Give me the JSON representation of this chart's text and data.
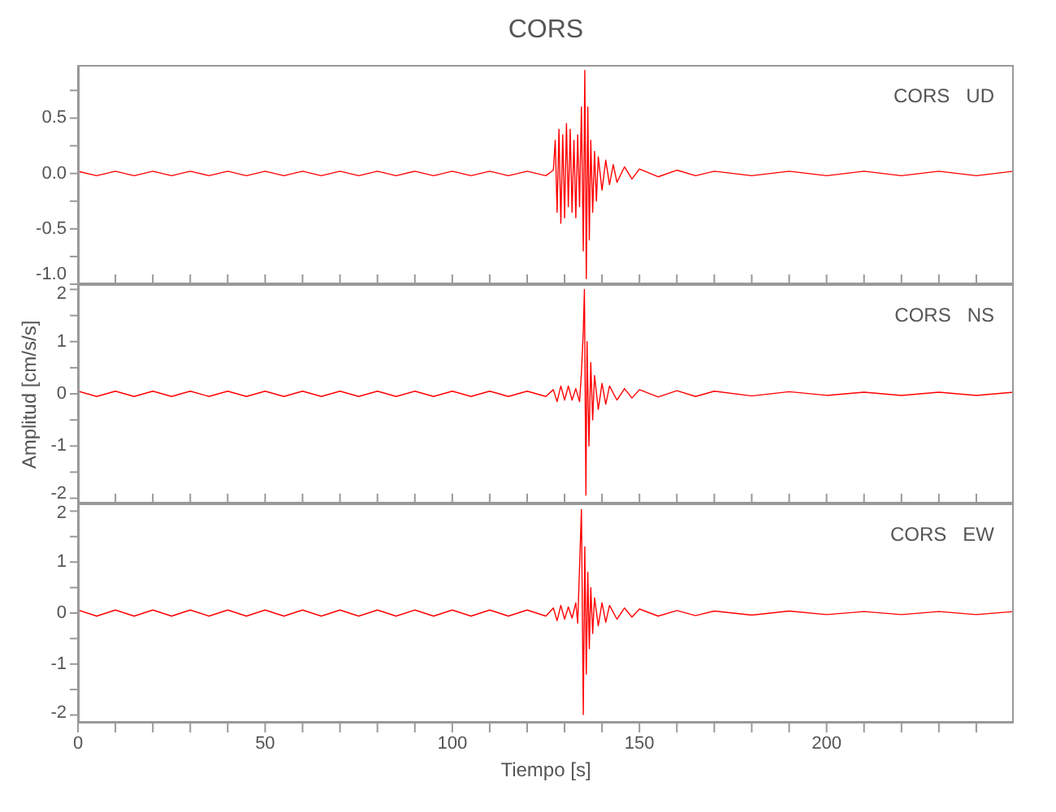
{
  "chart_data": [
    {
      "type": "line",
      "title": "CORS",
      "annotations": [
        "CORS   UD"
      ],
      "color": "#ff0000",
      "tick_labels": "y",
      "grid": false,
      "marker": "none",
      "line_style": "solid",
      "xlim": [
        0,
        250
      ],
      "ylim": [
        -1,
        0.98
      ],
      "xticks": [
        0,
        {
          "value": 10,
          "label": null
        },
        {
          "value": 20,
          "label": null
        },
        {
          "value": 30,
          "label": null
        },
        {
          "value": 40,
          "label": null
        },
        50,
        {
          "value": 60,
          "label": null
        },
        {
          "value": 70,
          "label": null
        },
        {
          "value": 80,
          "label": null
        },
        {
          "value": 90,
          "label": null
        },
        100,
        {
          "value": 110,
          "label": null
        },
        {
          "value": 120,
          "label": null
        },
        {
          "value": 130,
          "label": null
        },
        {
          "value": 140,
          "label": null
        },
        150,
        {
          "value": 160,
          "label": null
        },
        {
          "value": 170,
          "label": null
        },
        {
          "value": 180,
          "label": null
        },
        {
          "value": 190,
          "label": null
        },
        200,
        {
          "value": 210,
          "label": null
        },
        {
          "value": 220,
          "label": null
        },
        {
          "value": 230,
          "label": null
        },
        {
          "value": 240,
          "label": null
        }
      ],
      "yticks": [
        {
          "value": -1,
          "label": "-1.0"
        },
        {
          "value": -0.75,
          "label": null
        },
        {
          "value": -0.5,
          "label": "-0.5"
        },
        {
          "value": -0.25,
          "label": null
        },
        {
          "value": 0,
          "label": "0.0"
        },
        {
          "value": 0.25,
          "label": null
        },
        {
          "value": 0.5,
          "label": "0.5"
        },
        {
          "value": 0.75,
          "label": null
        }
      ],
      "x": [
        0,
        5,
        10,
        15,
        20,
        25,
        30,
        35,
        40,
        45,
        50,
        55,
        60,
        65,
        70,
        75,
        80,
        85,
        90,
        95,
        100,
        105,
        110,
        115,
        120,
        125,
        127,
        127.5,
        128,
        128.5,
        129,
        129.5,
        130,
        130.5,
        131,
        131.5,
        132,
        132.5,
        133,
        133.5,
        134,
        134.5,
        135,
        135.4,
        135.8,
        136.2,
        136.6,
        137,
        137.5,
        138,
        138.5,
        139,
        140,
        141,
        142,
        143,
        144,
        146,
        148,
        150,
        155,
        160,
        165,
        170,
        180,
        190,
        200,
        210,
        220,
        230,
        240,
        250
      ],
      "values": [
        0.02,
        -0.02,
        0.02,
        -0.02,
        0.02,
        -0.02,
        0.02,
        -0.02,
        0.02,
        -0.02,
        0.02,
        -0.02,
        0.02,
        -0.02,
        0.02,
        -0.02,
        0.02,
        -0.02,
        0.02,
        -0.02,
        0.02,
        -0.02,
        0.02,
        -0.02,
        0.02,
        -0.02,
        0.03,
        0.3,
        -0.35,
        0.4,
        -0.45,
        0.35,
        -0.4,
        0.45,
        -0.3,
        0.4,
        -0.35,
        0.3,
        -0.4,
        0.35,
        -0.3,
        0.6,
        -0.7,
        0.93,
        -0.95,
        0.6,
        -0.6,
        0.3,
        -0.35,
        0.2,
        -0.25,
        0.15,
        -0.15,
        0.12,
        -0.1,
        0.08,
        -0.08,
        0.06,
        -0.05,
        0.04,
        -0.03,
        0.03,
        -0.02,
        0.02,
        -0.02,
        0.02,
        -0.02,
        0.02,
        -0.02,
        0.02,
        -0.02,
        0.02
      ]
    },
    {
      "type": "line",
      "ylabel": "Amplitud [cm/s/s]",
      "annotations": [
        "CORS   NS"
      ],
      "color": "#ff0000",
      "tick_labels": "y",
      "grid": false,
      "marker": "none",
      "line_style": "solid",
      "xlim": [
        0,
        250
      ],
      "ylim": [
        -2.1,
        2.1
      ],
      "xticks": [
        0,
        {
          "value": 10,
          "label": null
        },
        {
          "value": 20,
          "label": null
        },
        {
          "value": 30,
          "label": null
        },
        {
          "value": 40,
          "label": null
        },
        50,
        {
          "value": 60,
          "label": null
        },
        {
          "value": 70,
          "label": null
        },
        {
          "value": 80,
          "label": null
        },
        {
          "value": 90,
          "label": null
        },
        100,
        {
          "value": 110,
          "label": null
        },
        {
          "value": 120,
          "label": null
        },
        {
          "value": 130,
          "label": null
        },
        {
          "value": 140,
          "label": null
        },
        150,
        {
          "value": 160,
          "label": null
        },
        {
          "value": 170,
          "label": null
        },
        {
          "value": 180,
          "label": null
        },
        {
          "value": 190,
          "label": null
        },
        200,
        {
          "value": 210,
          "label": null
        },
        {
          "value": 220,
          "label": null
        },
        {
          "value": 230,
          "label": null
        },
        {
          "value": 240,
          "label": null
        }
      ],
      "yticks": [
        -2,
        {
          "value": -1.5,
          "label": null
        },
        -1,
        {
          "value": -0.5,
          "label": null
        },
        0,
        {
          "value": 0.5,
          "label": null
        },
        1,
        {
          "value": 1.5,
          "label": null
        },
        2
      ],
      "x": [
        0,
        5,
        10,
        15,
        20,
        25,
        30,
        35,
        40,
        45,
        50,
        55,
        60,
        65,
        70,
        75,
        80,
        85,
        90,
        95,
        100,
        105,
        110,
        115,
        120,
        125,
        127,
        128,
        129,
        130,
        131,
        132,
        133,
        134,
        134.5,
        135,
        135.3,
        135.7,
        136,
        136.5,
        137,
        137.5,
        138,
        139,
        140,
        141,
        142,
        144,
        146,
        148,
        150,
        155,
        160,
        165,
        170,
        180,
        190,
        200,
        210,
        220,
        230,
        240,
        250
      ],
      "values": [
        0.05,
        -0.05,
        0.05,
        -0.05,
        0.05,
        -0.05,
        0.05,
        -0.05,
        0.05,
        -0.05,
        0.05,
        -0.05,
        0.05,
        -0.05,
        0.05,
        -0.05,
        0.05,
        -0.05,
        0.05,
        -0.05,
        0.05,
        -0.05,
        0.05,
        -0.05,
        0.05,
        -0.05,
        0.08,
        -0.15,
        0.15,
        -0.12,
        0.15,
        -0.12,
        0.1,
        -0.15,
        0.4,
        1.2,
        2.0,
        -1.94,
        1.0,
        -1.0,
        0.6,
        -0.5,
        0.35,
        -0.3,
        0.2,
        -0.2,
        0.15,
        -0.12,
        0.1,
        -0.08,
        0.08,
        -0.06,
        0.06,
        -0.05,
        0.05,
        -0.04,
        0.04,
        -0.03,
        0.03,
        -0.03,
        0.03,
        -0.03,
        0.03
      ]
    },
    {
      "type": "line",
      "xlabel": "Tiempo [s]",
      "annotations": [
        "CORS   EW"
      ],
      "color": "#ff0000",
      "grid": false,
      "marker": "none",
      "line_style": "solid",
      "xlim": [
        0,
        250
      ],
      "ylim": [
        -2.15,
        2.15
      ],
      "xticks": [
        0,
        {
          "value": 10,
          "label": null
        },
        {
          "value": 20,
          "label": null
        },
        {
          "value": 30,
          "label": null
        },
        {
          "value": 40,
          "label": null
        },
        50,
        {
          "value": 60,
          "label": null
        },
        {
          "value": 70,
          "label": null
        },
        {
          "value": 80,
          "label": null
        },
        {
          "value": 90,
          "label": null
        },
        100,
        {
          "value": 110,
          "label": null
        },
        {
          "value": 120,
          "label": null
        },
        {
          "value": 130,
          "label": null
        },
        {
          "value": 140,
          "label": null
        },
        150,
        {
          "value": 160,
          "label": null
        },
        {
          "value": 170,
          "label": null
        },
        {
          "value": 180,
          "label": null
        },
        {
          "value": 190,
          "label": null
        },
        200,
        {
          "value": 210,
          "label": null
        },
        {
          "value": 220,
          "label": null
        },
        {
          "value": 230,
          "label": null
        },
        {
          "value": 240,
          "label": null
        }
      ],
      "yticks": [
        -2,
        {
          "value": -1.5,
          "label": null
        },
        -1,
        {
          "value": -0.5,
          "label": null
        },
        0,
        {
          "value": 0.5,
          "label": null
        },
        1,
        {
          "value": 1.5,
          "label": null
        },
        2
      ],
      "x": [
        0,
        5,
        10,
        15,
        20,
        25,
        30,
        35,
        40,
        45,
        50,
        55,
        60,
        65,
        70,
        75,
        80,
        85,
        90,
        95,
        100,
        105,
        110,
        115,
        120,
        125,
        127,
        128,
        129,
        130,
        131,
        132,
        133,
        133.5,
        134,
        134.5,
        135,
        135.4,
        135.8,
        136.2,
        136.6,
        137,
        137.5,
        138,
        139,
        140,
        141,
        142,
        144,
        146,
        148,
        150,
        155,
        160,
        165,
        170,
        180,
        190,
        200,
        210,
        220,
        230,
        240,
        250
      ],
      "values": [
        0.06,
        -0.06,
        0.06,
        -0.06,
        0.06,
        -0.06,
        0.06,
        -0.06,
        0.06,
        -0.06,
        0.06,
        -0.06,
        0.06,
        -0.06,
        0.06,
        -0.06,
        0.06,
        -0.06,
        0.06,
        -0.06,
        0.06,
        -0.06,
        0.06,
        -0.06,
        0.06,
        -0.06,
        0.1,
        -0.15,
        0.15,
        -0.12,
        0.12,
        -0.1,
        0.2,
        -0.2,
        0.9,
        2.03,
        -1.99,
        1.3,
        -1.2,
        0.8,
        -0.7,
        0.5,
        -0.4,
        0.3,
        -0.25,
        0.2,
        -0.18,
        0.15,
        -0.12,
        0.1,
        -0.08,
        0.08,
        -0.06,
        0.05,
        -0.05,
        0.04,
        -0.04,
        0.04,
        -0.03,
        0.03,
        -0.03,
        0.03,
        -0.03,
        0.03
      ]
    }
  ]
}
